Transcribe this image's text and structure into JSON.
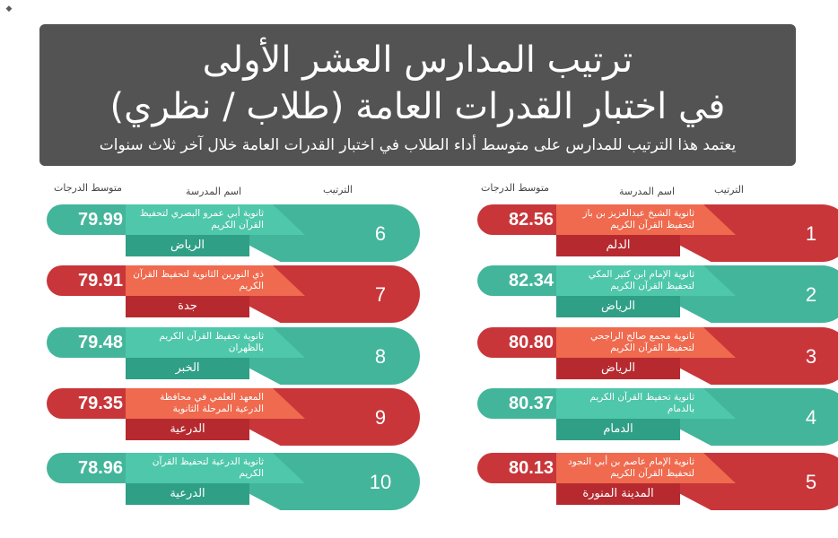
{
  "header": {
    "title_line1": "ترتيب المدارس العشر الأولى",
    "title_line2": "في اختبار القدرات العامة (طلاب / نظري)",
    "subtitle": "يعتمد هذا الترتيب للمدارس على متوسط أداء الطلاب في اختبار القدرات العامة خلال آخر ثلاث سنوات"
  },
  "columns": {
    "rank": "الترتيب",
    "school": "اسم المدرسة",
    "score": "متوسط الدرجات"
  },
  "right_column": [
    {
      "rank": "1",
      "name": "ثانوية الشيخ عبدالعزيز بن باز لتحفيظ القرآن الكريم",
      "city": "الدلم",
      "score": "82.56",
      "color": "red"
    },
    {
      "rank": "2",
      "name": "ثانوية الإمام ابن كثير المكي لتحفيظ القرآن الكريم",
      "city": "الرياض",
      "score": "82.34",
      "color": "green"
    },
    {
      "rank": "3",
      "name": "ثانوية مجمع صالح الراجحي لتحفيظ القرآن الكريم",
      "city": "الرياض",
      "score": "80.80",
      "color": "red"
    },
    {
      "rank": "4",
      "name": "ثانوية تحفيظ القرآن الكريم بالدمام",
      "city": "الدمام",
      "score": "80.37",
      "color": "green"
    },
    {
      "rank": "5",
      "name": "ثانوية الإمام عاصم بن أبي النجود لتحفيظ القرآن الكريم",
      "city": "المدينة المنورة",
      "score": "80.13",
      "color": "red"
    }
  ],
  "left_column": [
    {
      "rank": "6",
      "name": "ثانوية أبي عمرو البصري لتحفيظ القرآن الكريم",
      "city": "الرياض",
      "score": "79.99",
      "color": "green"
    },
    {
      "rank": "7",
      "name": "ذي النورين الثانوية لتحفيظ القرآن الكريم",
      "city": "جدة",
      "score": "79.91",
      "color": "red"
    },
    {
      "rank": "8",
      "name": "ثانوية تحفيظ القرآن الكريم بالظهران",
      "city": "الخبر",
      "score": "79.48",
      "color": "green"
    },
    {
      "rank": "9",
      "name": "المعهد العلمي في محافظة الدرعية المرحلة الثانوية",
      "city": "الدرعية",
      "score": "79.35",
      "color": "red"
    },
    {
      "rank": "10",
      "name": "ثانوية الدرعية لتحفيظ القرآن الكريم",
      "city": "الدرعية",
      "score": "78.96",
      "color": "green"
    }
  ],
  "colors": {
    "header_bg": "#535353",
    "green": "#43b59b",
    "red": "#c8363a"
  }
}
